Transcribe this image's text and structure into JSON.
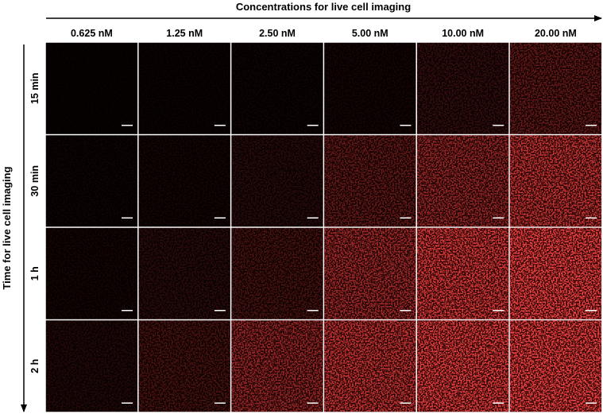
{
  "top_axis_label": "Concentrations for live cell imaging",
  "left_axis_label": "Time for live cell imaging",
  "concentrations": [
    "0.625 nM",
    "1.25 nM",
    "2.50 nM",
    "5.00 nM",
    "10.00 nM",
    "20.00 nM"
  ],
  "times": [
    "15 min",
    "30 min",
    "1 h",
    "2 h"
  ],
  "signal_color": "#e01010",
  "panel_background": "#000000",
  "scale_bar_color": "#ffffff",
  "relative_intensity": [
    [
      0.03,
      0.04,
      0.05,
      0.07,
      0.18,
      0.35
    ],
    [
      0.05,
      0.07,
      0.14,
      0.35,
      0.55,
      0.75
    ],
    [
      0.07,
      0.15,
      0.25,
      0.6,
      0.85,
      0.98
    ],
    [
      0.12,
      0.25,
      0.55,
      0.75,
      0.9,
      0.98
    ]
  ]
}
